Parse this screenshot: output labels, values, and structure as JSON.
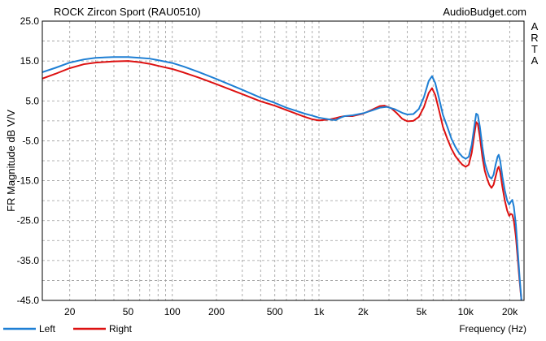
{
  "chart_data": {
    "type": "line",
    "title": "ROCK Zircon Sport (RAU0510)",
    "watermark": "AudioBudget.com",
    "side_label": [
      "A",
      "R",
      "T",
      "A"
    ],
    "xlabel": "Frequency (Hz)",
    "ylabel": "FR Magnitude dB V/V",
    "x_scale": "log",
    "xlim": [
      13,
      25000
    ],
    "ylim": [
      -45,
      25
    ],
    "grid": true,
    "x_ticks": [
      {
        "value": 20,
        "label": "20"
      },
      {
        "value": 50,
        "label": "50"
      },
      {
        "value": 100,
        "label": "100"
      },
      {
        "value": 200,
        "label": "200"
      },
      {
        "value": 500,
        "label": "500"
      },
      {
        "value": 1000,
        "label": "1k"
      },
      {
        "value": 2000,
        "label": "2k"
      },
      {
        "value": 5000,
        "label": "5k"
      },
      {
        "value": 10000,
        "label": "10k"
      },
      {
        "value": 20000,
        "label": "20k"
      }
    ],
    "y_ticks": [
      {
        "value": 25,
        "label": "25.0"
      },
      {
        "value": 15,
        "label": "15.0"
      },
      {
        "value": 5,
        "label": "5.0"
      },
      {
        "value": -5,
        "label": "-5.0"
      },
      {
        "value": -15,
        "label": "-15.0"
      },
      {
        "value": -25,
        "label": "-25.0"
      },
      {
        "value": -35,
        "label": "-35.0"
      },
      {
        "value": -45,
        "label": "-45.0"
      }
    ],
    "legend_position": "bottom-left",
    "series": [
      {
        "name": "Left",
        "color": "#1e7fd4",
        "points": [
          [
            13,
            12.2
          ],
          [
            16,
            13.3
          ],
          [
            20,
            14.6
          ],
          [
            25,
            15.4
          ],
          [
            30,
            15.8
          ],
          [
            40,
            16.0
          ],
          [
            50,
            16.0
          ],
          [
            60,
            15.8
          ],
          [
            70,
            15.6
          ],
          [
            80,
            15.2
          ],
          [
            100,
            14.5
          ],
          [
            120,
            13.6
          ],
          [
            150,
            12.3
          ],
          [
            200,
            10.5
          ],
          [
            300,
            7.8
          ],
          [
            400,
            5.8
          ],
          [
            500,
            4.5
          ],
          [
            600,
            3.3
          ],
          [
            700,
            2.5
          ],
          [
            800,
            1.8
          ],
          [
            900,
            1.3
          ],
          [
            1000,
            0.8
          ],
          [
            1200,
            0.3
          ],
          [
            1300,
            0.2
          ],
          [
            1400,
            0.8
          ],
          [
            1500,
            1.2
          ],
          [
            1700,
            1.4
          ],
          [
            2000,
            1.9
          ],
          [
            2300,
            2.6
          ],
          [
            2600,
            3.3
          ],
          [
            2900,
            3.5
          ],
          [
            3300,
            2.9
          ],
          [
            3700,
            2.0
          ],
          [
            4000,
            1.6
          ],
          [
            4400,
            1.7
          ],
          [
            4800,
            3.0
          ],
          [
            5200,
            6.0
          ],
          [
            5600,
            10.0
          ],
          [
            5900,
            11.2
          ],
          [
            6200,
            9.5
          ],
          [
            6600,
            5.5
          ],
          [
            7000,
            1.5
          ],
          [
            7500,
            -1.5
          ],
          [
            8000,
            -4.5
          ],
          [
            8500,
            -6.5
          ],
          [
            9000,
            -8.0
          ],
          [
            9500,
            -9.0
          ],
          [
            10000,
            -9.5
          ],
          [
            10500,
            -9.0
          ],
          [
            11000,
            -6.0
          ],
          [
            11500,
            -1.0
          ],
          [
            11800,
            1.8
          ],
          [
            12100,
            1.5
          ],
          [
            12500,
            -1.5
          ],
          [
            13000,
            -6.5
          ],
          [
            13500,
            -10.5
          ],
          [
            14000,
            -12.5
          ],
          [
            14500,
            -14.0
          ],
          [
            15000,
            -14.5
          ],
          [
            15500,
            -13.5
          ],
          [
            16000,
            -11.0
          ],
          [
            16500,
            -9.0
          ],
          [
            16800,
            -8.5
          ],
          [
            17200,
            -10.0
          ],
          [
            17800,
            -14.0
          ],
          [
            18500,
            -17.5
          ],
          [
            19200,
            -20.0
          ],
          [
            19800,
            -21.0
          ],
          [
            20300,
            -20.3
          ],
          [
            20800,
            -19.8
          ],
          [
            21300,
            -21.5
          ],
          [
            22000,
            -26.0
          ],
          [
            22700,
            -33.0
          ],
          [
            23300,
            -39.0
          ],
          [
            24000,
            -45.0
          ]
        ]
      },
      {
        "name": "Right",
        "color": "#dd1111",
        "points": [
          [
            13,
            10.6
          ],
          [
            16,
            11.8
          ],
          [
            20,
            13.2
          ],
          [
            25,
            14.2
          ],
          [
            30,
            14.6
          ],
          [
            40,
            14.9
          ],
          [
            50,
            15.0
          ],
          [
            60,
            14.7
          ],
          [
            70,
            14.3
          ],
          [
            80,
            13.8
          ],
          [
            100,
            13.0
          ],
          [
            120,
            12.1
          ],
          [
            150,
            10.9
          ],
          [
            200,
            9.2
          ],
          [
            300,
            6.7
          ],
          [
            400,
            4.9
          ],
          [
            500,
            3.8
          ],
          [
            600,
            2.7
          ],
          [
            700,
            1.8
          ],
          [
            800,
            1.0
          ],
          [
            900,
            0.4
          ],
          [
            1000,
            0.1
          ],
          [
            1200,
            0.4
          ],
          [
            1300,
            0.7
          ],
          [
            1400,
            1.0
          ],
          [
            1500,
            1.2
          ],
          [
            1700,
            1.2
          ],
          [
            2000,
            1.8
          ],
          [
            2300,
            2.8
          ],
          [
            2600,
            3.7
          ],
          [
            2800,
            3.8
          ],
          [
            3100,
            3.2
          ],
          [
            3400,
            1.9
          ],
          [
            3700,
            0.5
          ],
          [
            4000,
            -0.1
          ],
          [
            4400,
            0.0
          ],
          [
            4800,
            1.0
          ],
          [
            5200,
            3.5
          ],
          [
            5600,
            7.0
          ],
          [
            5900,
            8.2
          ],
          [
            6200,
            6.5
          ],
          [
            6600,
            2.5
          ],
          [
            7000,
            -1.5
          ],
          [
            7500,
            -4.5
          ],
          [
            8000,
            -7.0
          ],
          [
            8500,
            -8.8
          ],
          [
            9000,
            -10.0
          ],
          [
            9500,
            -11.0
          ],
          [
            10000,
            -11.5
          ],
          [
            10500,
            -11.0
          ],
          [
            11000,
            -8.0
          ],
          [
            11500,
            -3.0
          ],
          [
            11800,
            -0.3
          ],
          [
            12100,
            -0.8
          ],
          [
            12500,
            -4.0
          ],
          [
            13000,
            -9.0
          ],
          [
            13500,
            -12.5
          ],
          [
            14000,
            -14.5
          ],
          [
            14500,
            -16.0
          ],
          [
            15000,
            -16.8
          ],
          [
            15500,
            -16.0
          ],
          [
            16000,
            -14.0
          ],
          [
            16500,
            -12.0
          ],
          [
            16800,
            -11.5
          ],
          [
            17200,
            -12.8
          ],
          [
            17800,
            -16.5
          ],
          [
            18500,
            -20.0
          ],
          [
            19200,
            -22.5
          ],
          [
            19800,
            -23.8
          ],
          [
            20300,
            -23.3
          ],
          [
            20800,
            -23.5
          ],
          [
            21300,
            -25.0
          ],
          [
            22000,
            -29.0
          ],
          [
            22700,
            -35.0
          ],
          [
            23300,
            -40.0
          ],
          [
            24000,
            -45.0
          ]
        ]
      }
    ]
  }
}
